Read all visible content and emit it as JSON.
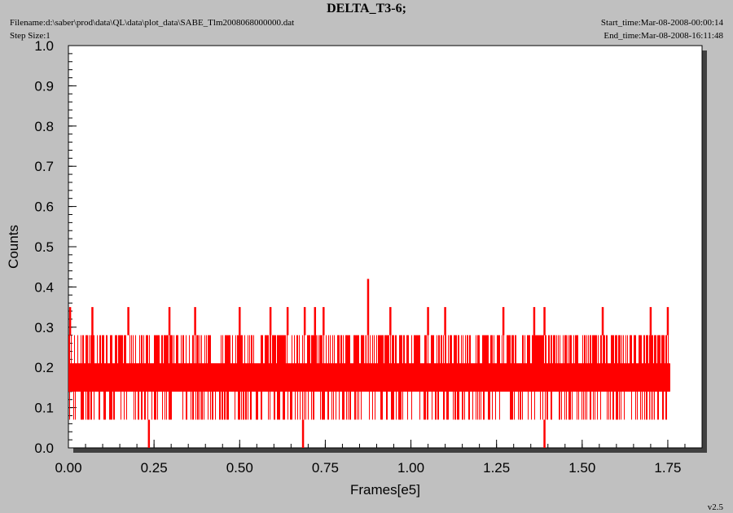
{
  "header": {
    "title": "DELTA_T3-6;",
    "filename": "Filename:d:\\saber\\prod\\data\\QL\\data\\plot_data\\SABE_Tlm2008068000000.dat",
    "step_size": "Step Size:1",
    "start_time": "Start_time:Mar-08-2008-00:00:14",
    "end_time": "End_time:Mar-08-2008-16:11:48",
    "version": "v2.5"
  },
  "colors": {
    "background": "#c0c0c0",
    "plot_area": "#ffffff",
    "shadow": "#404040",
    "series": "#ff0000"
  },
  "chart_data": {
    "type": "line",
    "title": "DELTA_T3-6;",
    "xlabel": "Frames[e5]",
    "ylabel": "Counts",
    "xlim": [
      0.0,
      1.85
    ],
    "ylim": [
      0.0,
      1.0
    ],
    "x_ticks": [
      "0.00",
      "0.25",
      "0.50",
      "0.75",
      "1.00",
      "1.25",
      "1.50",
      "1.75"
    ],
    "y_ticks": [
      "0.0",
      "0.1",
      "0.2",
      "0.3",
      "0.4",
      "0.5",
      "0.6",
      "0.7",
      "0.8",
      "0.9",
      "1.0"
    ],
    "grid": false,
    "series": [
      {
        "name": "",
        "color": "#ff0000",
        "x_range": [
          0.0,
          1.755
        ],
        "typical_band": [
          0.07,
          0.28
        ],
        "frequent_levels": [
          0.07,
          0.14,
          0.21,
          0.28
        ],
        "spikes": [
          {
            "x": 0.005,
            "y": 0.35
          },
          {
            "x": 0.07,
            "y": 0.35
          },
          {
            "x": 0.175,
            "y": 0.35
          },
          {
            "x": 0.295,
            "y": 0.35
          },
          {
            "x": 0.37,
            "y": 0.35
          },
          {
            "x": 0.5,
            "y": 0.35
          },
          {
            "x": 0.59,
            "y": 0.35
          },
          {
            "x": 0.64,
            "y": 0.35
          },
          {
            "x": 0.69,
            "y": 0.35
          },
          {
            "x": 0.72,
            "y": 0.35
          },
          {
            "x": 0.745,
            "y": 0.35
          },
          {
            "x": 0.875,
            "y": 0.42
          },
          {
            "x": 0.94,
            "y": 0.35
          },
          {
            "x": 1.05,
            "y": 0.35
          },
          {
            "x": 1.1,
            "y": 0.35
          },
          {
            "x": 1.27,
            "y": 0.35
          },
          {
            "x": 1.36,
            "y": 0.35
          },
          {
            "x": 1.39,
            "y": 0.35
          },
          {
            "x": 1.56,
            "y": 0.35
          },
          {
            "x": 1.7,
            "y": 0.35
          },
          {
            "x": 1.75,
            "y": 0.35
          }
        ],
        "dips": [
          {
            "x": 0.235,
            "y": 0.0
          },
          {
            "x": 0.685,
            "y": 0.0
          },
          {
            "x": 1.39,
            "y": 0.0
          }
        ]
      }
    ]
  }
}
